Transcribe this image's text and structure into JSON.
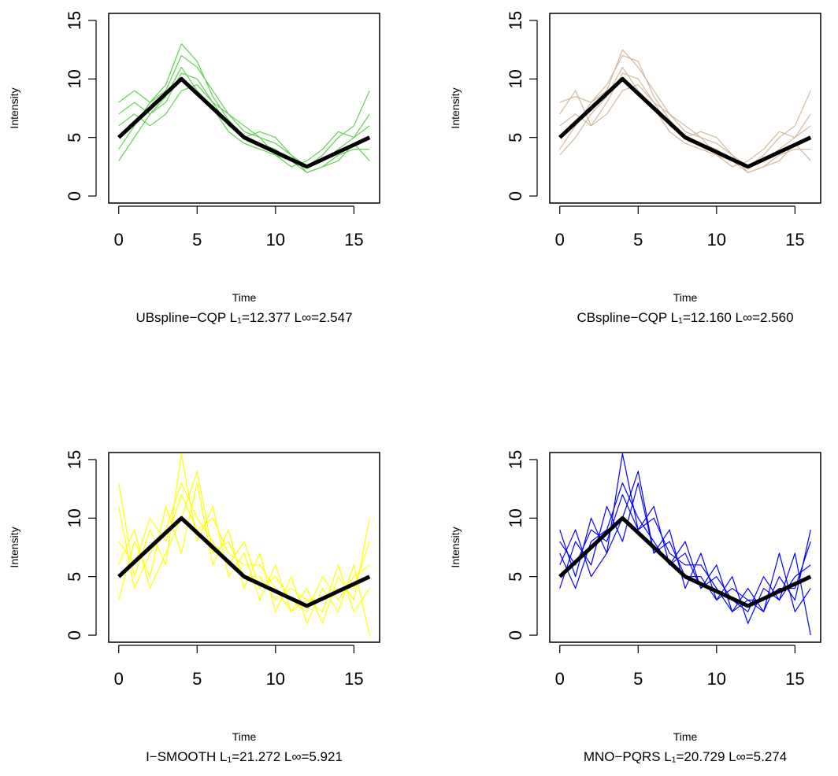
{
  "chart_data": [
    {
      "type": "line",
      "subtitle": "UBspline−CQP L₁=12.377 L∞=2.547",
      "xlabel": "Time",
      "ylabel": "Intensity",
      "x": [
        0,
        1,
        2,
        3,
        4,
        5,
        6,
        7,
        8,
        9,
        10,
        11,
        12,
        13,
        14,
        15,
        16
      ],
      "xlim": [
        -0.64,
        16.64
      ],
      "ylim": [
        -0.6,
        15.6
      ],
      "xticks": [
        0,
        5,
        10,
        15
      ],
      "yticks": [
        0,
        5,
        10,
        15
      ],
      "series": [
        {
          "color": "#61d04f",
          "line_width": 1.2,
          "values": [
            7,
            8,
            7,
            8,
            10.5,
            10,
            8,
            6,
            5,
            4.5,
            4,
            3,
            2.5,
            3,
            4,
            5,
            6
          ]
        },
        {
          "color": "#61d04f",
          "line_width": 1.2,
          "values": [
            4,
            6,
            8,
            9,
            12,
            11,
            9,
            7,
            5.5,
            5,
            4.5,
            3.5,
            2,
            2.5,
            3.5,
            4,
            4
          ]
        },
        {
          "color": "#61d04f",
          "line_width": 1.2,
          "values": [
            6,
            7,
            6,
            7,
            9,
            9.5,
            8,
            7,
            6,
            5,
            3.5,
            2.5,
            3,
            4,
            5.5,
            5,
            7
          ]
        },
        {
          "color": "#61d04f",
          "line_width": 1.2,
          "values": [
            3,
            5,
            7,
            8.5,
            11,
            9,
            7.5,
            5.5,
            4.5,
            4,
            3.5,
            3,
            2,
            2.5,
            3,
            4.5,
            3
          ]
        },
        {
          "color": "#61d04f",
          "line_width": 1.2,
          "values": [
            8,
            9,
            8,
            9.5,
            13,
            11.5,
            8.5,
            6.5,
            5,
            5.5,
            5,
            3.5,
            2.5,
            3.5,
            5,
            6,
            9
          ]
        },
        {
          "color": "#000000",
          "line_width": 5,
          "values": [
            5,
            6.25,
            7.5,
            8.75,
            10,
            8.75,
            7.5,
            6.25,
            5,
            4.375,
            3.75,
            3.125,
            2.5,
            3.125,
            3.75,
            4.375,
            5
          ]
        }
      ]
    },
    {
      "type": "line",
      "subtitle": "CBspline−CQP L₁=12.160 L∞=2.560",
      "xlabel": "Time",
      "ylabel": "Intensity",
      "x": [
        0,
        1,
        2,
        3,
        4,
        5,
        6,
        7,
        8,
        9,
        10,
        11,
        12,
        13,
        14,
        15,
        16
      ],
      "xlim": [
        -0.64,
        16.64
      ],
      "ylim": [
        -0.6,
        15.6
      ],
      "xticks": [
        0,
        5,
        10,
        15
      ],
      "yticks": [
        0,
        5,
        10,
        15
      ],
      "series": [
        {
          "color": "#d2b89a",
          "line_width": 1.2,
          "values": [
            7,
            9,
            6,
            8,
            10.5,
            10,
            8,
            6,
            5,
            4.5,
            4,
            3,
            2.5,
            3,
            4,
            5,
            6
          ]
        },
        {
          "color": "#d2b89a",
          "line_width": 1.2,
          "values": [
            4,
            6,
            8,
            9,
            12.5,
            11,
            9,
            7,
            5.5,
            5,
            4.5,
            3.5,
            2,
            2.5,
            3.5,
            4,
            4
          ]
        },
        {
          "color": "#d2b89a",
          "line_width": 1.2,
          "values": [
            6,
            7,
            6,
            7,
            9,
            9.5,
            8,
            7,
            6,
            5,
            3.5,
            2.5,
            3,
            4,
            5.5,
            5,
            7
          ]
        },
        {
          "color": "#d2b89a",
          "line_width": 1.2,
          "values": [
            3.5,
            5,
            7,
            8.5,
            11,
            9,
            7.5,
            5.5,
            4.5,
            4,
            3.5,
            3,
            2,
            2.5,
            3,
            4.5,
            3
          ]
        },
        {
          "color": "#d2b89a",
          "line_width": 1.2,
          "values": [
            8,
            8.5,
            8,
            9.5,
            12,
            11.5,
            8.5,
            6.5,
            5,
            5.5,
            5,
            3.5,
            2.5,
            3.5,
            5,
            6,
            9
          ]
        },
        {
          "color": "#000000",
          "line_width": 5,
          "values": [
            5,
            6.25,
            7.5,
            8.75,
            10,
            8.75,
            7.5,
            6.25,
            5,
            4.375,
            3.75,
            3.125,
            2.5,
            3.125,
            3.75,
            4.375,
            5
          ]
        }
      ]
    },
    {
      "type": "line",
      "subtitle": "I−SMOOTH L₁=21.272 L∞=5.921",
      "xlabel": "Time",
      "ylabel": "Intensity",
      "x": [
        0,
        1,
        2,
        3,
        4,
        5,
        6,
        7,
        8,
        9,
        10,
        11,
        12,
        13,
        14,
        15,
        16
      ],
      "xlim": [
        -0.64,
        16.64
      ],
      "ylim": [
        -0.6,
        15.6
      ],
      "xticks": [
        0,
        5,
        10,
        15
      ],
      "yticks": [
        0,
        5,
        10,
        15
      ],
      "series": [
        {
          "color": "#ffff00",
          "line_width": 1.2,
          "values": [
            13,
            5,
            9,
            6,
            15.5,
            8,
            11,
            5,
            7,
            3,
            6,
            2,
            4,
            1,
            5,
            3,
            10
          ]
        },
        {
          "color": "#ffff00",
          "line_width": 1.2,
          "values": [
            3,
            8,
            5,
            11,
            7,
            13,
            6,
            9,
            4,
            7,
            2,
            5,
            1,
            4,
            2,
            6,
            0
          ]
        },
        {
          "color": "#ffff00",
          "line_width": 1.2,
          "values": [
            11,
            4,
            7,
            9,
            13,
            10,
            8,
            6,
            8,
            4,
            5,
            3,
            2,
            5,
            3,
            5,
            6
          ]
        },
        {
          "color": "#ffff00",
          "line_width": 1.2,
          "values": [
            6,
            9,
            4,
            7,
            10,
            14,
            7,
            8,
            5,
            5,
            3,
            4,
            3,
            2,
            6,
            2,
            4
          ]
        },
        {
          "color": "#ffff00",
          "line_width": 1.2,
          "values": [
            8,
            6,
            10,
            8,
            12,
            9,
            10,
            7,
            6,
            6,
            4,
            2,
            3,
            3,
            4,
            4,
            8
          ]
        },
        {
          "color": "#000000",
          "line_width": 5,
          "values": [
            5,
            6.25,
            7.5,
            8.75,
            10,
            8.75,
            7.5,
            6.25,
            5,
            4.375,
            3.75,
            3.125,
            2.5,
            3.125,
            3.75,
            4.375,
            5
          ]
        }
      ]
    },
    {
      "type": "line",
      "subtitle": "MNO−PQRS L₁=20.729 L∞=5.274",
      "xlabel": "Time",
      "ylabel": "Intensity",
      "x": [
        0,
        1,
        2,
        3,
        4,
        5,
        6,
        7,
        8,
        9,
        10,
        11,
        12,
        13,
        14,
        15,
        16
      ],
      "xlim": [
        -0.64,
        16.64
      ],
      "ylim": [
        -0.6,
        15.6
      ],
      "xticks": [
        0,
        5,
        10,
        15
      ],
      "yticks": [
        0,
        5,
        10,
        15
      ],
      "series": [
        {
          "color": "#0000ff",
          "line_width": 1.2,
          "values": [
            9,
            5,
            10,
            7,
            15.5,
            9,
            11,
            6,
            7,
            4,
            6,
            2,
            4,
            2,
            5,
            3,
            9
          ]
        },
        {
          "color": "#0000ff",
          "line_width": 1.2,
          "values": [
            4,
            8,
            6,
            11,
            8,
            13,
            7,
            9,
            4,
            7,
            3,
            5,
            1,
            4,
            3,
            7,
            0
          ]
        },
        {
          "color": "#0000ff",
          "line_width": 1.2,
          "values": [
            7,
            4,
            8,
            9,
            13,
            10,
            8,
            6,
            8,
            4,
            5,
            3,
            2,
            5,
            3,
            5,
            6
          ]
        },
        {
          "color": "#0000ff",
          "line_width": 1.2,
          "values": [
            6,
            9,
            5,
            7,
            10,
            14,
            7,
            8,
            5,
            5,
            3,
            4,
            3,
            2,
            7,
            2,
            4
          ]
        },
        {
          "color": "#0000ff",
          "line_width": 1.2,
          "values": [
            8,
            6,
            9,
            8,
            12,
            9,
            10,
            7,
            6,
            6,
            4,
            2,
            3,
            3,
            4,
            4,
            8
          ]
        },
        {
          "color": "#000000",
          "line_width": 5,
          "values": [
            5,
            6.25,
            7.5,
            8.75,
            10,
            8.75,
            7.5,
            6.25,
            5,
            4.375,
            3.75,
            3.125,
            2.5,
            3.125,
            3.75,
            4.375,
            5
          ]
        }
      ]
    }
  ]
}
